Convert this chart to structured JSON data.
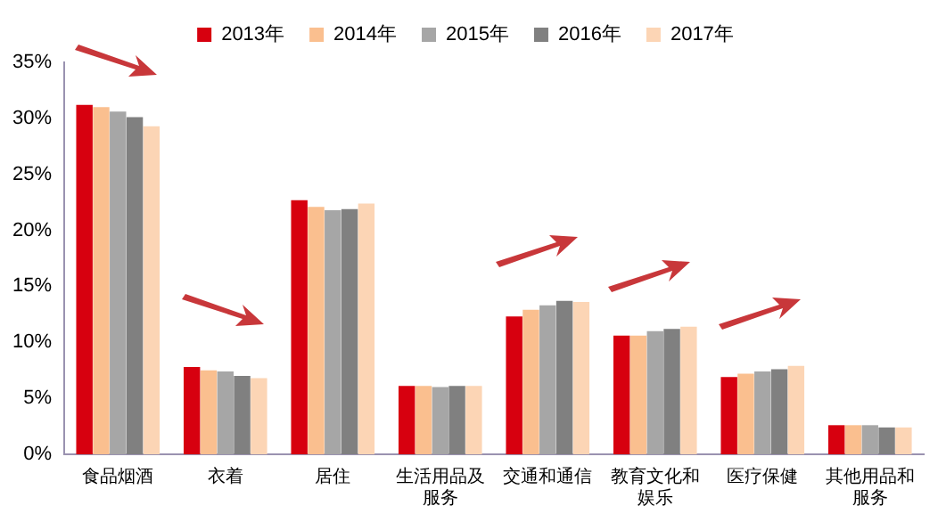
{
  "chart_data": {
    "type": "bar",
    "categories": [
      "食品烟酒",
      "衣着",
      "居住",
      "生活用品及服务",
      "交通和通信",
      "教育文化和娱乐",
      "医疗保健",
      "其他用品和服务"
    ],
    "series": [
      {
        "name": "2013年",
        "color": "#d7000f",
        "values": [
          31.2,
          7.8,
          22.7,
          6.1,
          12.3,
          10.6,
          6.9,
          2.6
        ]
      },
      {
        "name": "2014年",
        "color": "#fabf8f",
        "values": [
          31.0,
          7.5,
          22.1,
          6.1,
          12.9,
          10.6,
          7.2,
          2.6
        ]
      },
      {
        "name": "2015年",
        "color": "#a6a6a6",
        "values": [
          30.6,
          7.4,
          21.8,
          6.0,
          13.3,
          11.0,
          7.4,
          2.6
        ]
      },
      {
        "name": "2016年",
        "color": "#808080",
        "values": [
          30.1,
          7.0,
          21.9,
          6.1,
          13.7,
          11.2,
          7.6,
          2.4
        ]
      },
      {
        "name": "2017年",
        "color": "#fcd5b5",
        "values": [
          29.3,
          6.8,
          22.4,
          6.1,
          13.6,
          11.4,
          7.9,
          2.4
        ]
      }
    ],
    "ylim": [
      0,
      35
    ],
    "yticks": [
      {
        "value": 0,
        "label": "0%"
      },
      {
        "value": 5,
        "label": "5%"
      },
      {
        "value": 10,
        "label": "10%"
      },
      {
        "value": 15,
        "label": "15%"
      },
      {
        "value": 20,
        "label": "20%"
      },
      {
        "value": 25,
        "label": "25%"
      },
      {
        "value": 30,
        "label": "30%"
      },
      {
        "value": 35,
        "label": "35%"
      }
    ],
    "grid": false,
    "legend": "top"
  }
}
